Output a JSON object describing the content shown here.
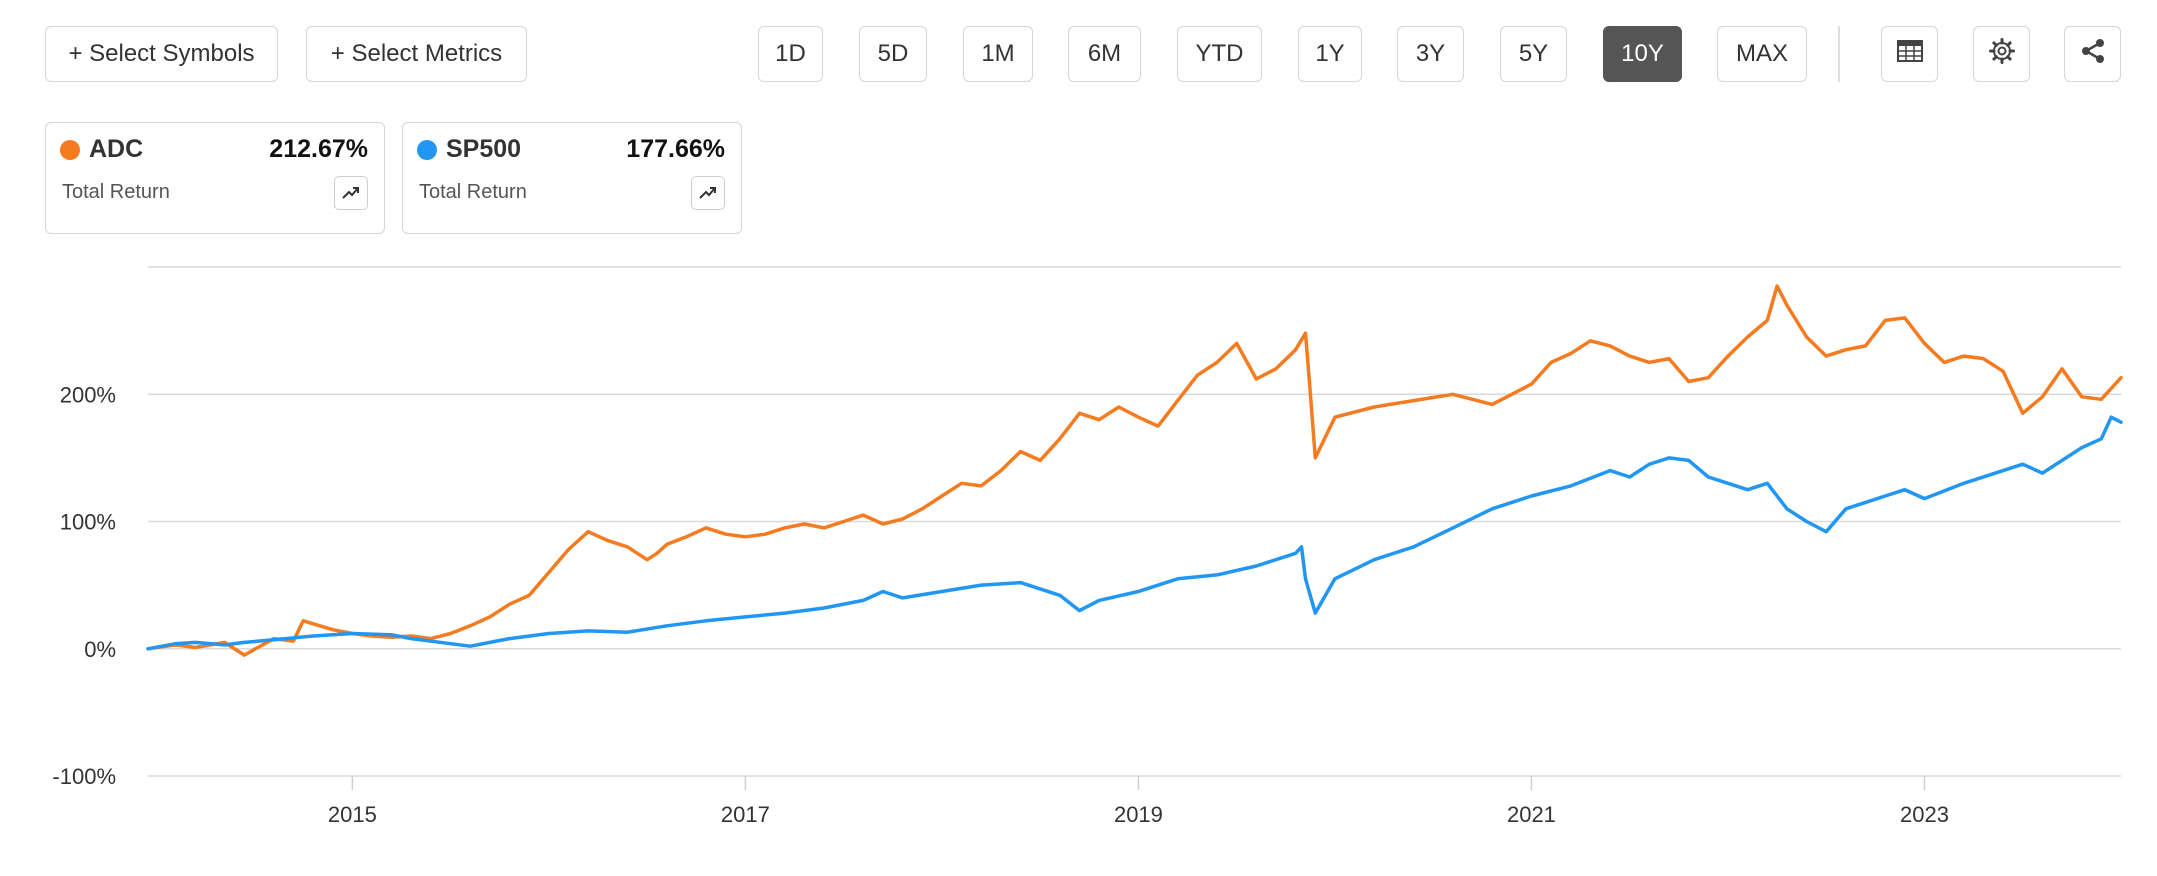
{
  "toolbar": {
    "select_symbols": "+ Select Symbols",
    "select_metrics": "+ Select Metrics",
    "ranges": [
      "1D",
      "5D",
      "1M",
      "6M",
      "YTD",
      "1Y",
      "3Y",
      "5Y",
      "10Y",
      "MAX"
    ],
    "active_range": "10Y",
    "icons": [
      "table-icon",
      "gear-icon",
      "share-icon"
    ]
  },
  "legend": [
    {
      "symbol": "ADC",
      "return": "212.67%",
      "metric": "Total Return",
      "color": "#F47B20"
    },
    {
      "symbol": "SP500",
      "return": "177.66%",
      "metric": "Total Return",
      "color": "#2196F3"
    }
  ],
  "chart_data": {
    "type": "line",
    "x_range": [
      2013.96,
      2024.0
    ],
    "ylim": [
      -100,
      300
    ],
    "y_ticks": [
      {
        "value": 200,
        "label": "200%"
      },
      {
        "value": 100,
        "label": "100%"
      },
      {
        "value": 0,
        "label": "0%"
      },
      {
        "value": -100,
        "label": "-100%"
      }
    ],
    "x_ticks": [
      {
        "value": 2015,
        "label": "2015"
      },
      {
        "value": 2017,
        "label": "2017"
      },
      {
        "value": 2019,
        "label": "2019"
      },
      {
        "value": 2021,
        "label": "2021"
      },
      {
        "value": 2023,
        "label": "2023"
      }
    ],
    "grid": true,
    "series": [
      {
        "name": "ADC",
        "color": "#F47B20",
        "x": [
          2013.96,
          2014.1,
          2014.2,
          2014.35,
          2014.45,
          2014.6,
          2014.7,
          2014.75,
          2014.9,
          2015.0,
          2015.1,
          2015.2,
          2015.3,
          2015.4,
          2015.5,
          2015.6,
          2015.7,
          2015.8,
          2015.9,
          2016.0,
          2016.1,
          2016.2,
          2016.3,
          2016.4,
          2016.5,
          2016.55,
          2016.6,
          2016.7,
          2016.8,
          2016.9,
          2017.0,
          2017.1,
          2017.2,
          2017.3,
          2017.4,
          2017.5,
          2017.6,
          2017.7,
          2017.8,
          2017.9,
          2018.0,
          2018.1,
          2018.2,
          2018.3,
          2018.4,
          2018.5,
          2018.6,
          2018.7,
          2018.8,
          2018.9,
          2019.0,
          2019.1,
          2019.2,
          2019.3,
          2019.4,
          2019.5,
          2019.6,
          2019.7,
          2019.8,
          2019.85,
          2019.87,
          2019.9,
          2020.0,
          2020.2,
          2020.4,
          2020.6,
          2020.8,
          2021.0,
          2021.1,
          2021.2,
          2021.3,
          2021.4,
          2021.5,
          2021.6,
          2021.7,
          2021.8,
          2021.9,
          2022.0,
          2022.1,
          2022.2,
          2022.25,
          2022.3,
          2022.4,
          2022.5,
          2022.6,
          2022.7,
          2022.8,
          2022.9,
          2023.0,
          2023.1,
          2023.2,
          2023.3,
          2023.4,
          2023.5,
          2023.6,
          2023.7,
          2023.8,
          2023.9,
          2024.0
        ],
        "y": [
          0,
          3,
          1,
          5,
          -5,
          8,
          6,
          22,
          15,
          12,
          10,
          9,
          10,
          8,
          12,
          18,
          25,
          35,
          42,
          60,
          78,
          92,
          85,
          80,
          70,
          75,
          82,
          88,
          95,
          90,
          88,
          90,
          95,
          98,
          95,
          100,
          105,
          98,
          102,
          110,
          120,
          130,
          128,
          140,
          155,
          148,
          165,
          185,
          180,
          190,
          182,
          175,
          195,
          215,
          225,
          240,
          212,
          220,
          235,
          248,
          210,
          150,
          182,
          190,
          195,
          200,
          192,
          208,
          225,
          232,
          242,
          238,
          230,
          225,
          228,
          210,
          213,
          230,
          245,
          258,
          285,
          270,
          245,
          230,
          235,
          238,
          258,
          260,
          240,
          225,
          230,
          228,
          218,
          185,
          198,
          220,
          198,
          196,
          213
        ]
      },
      {
        "name": "SP500",
        "color": "#2196F3",
        "x": [
          2013.96,
          2014.1,
          2014.2,
          2014.35,
          2014.45,
          2014.6,
          2014.8,
          2015.0,
          2015.2,
          2015.3,
          2015.5,
          2015.6,
          2015.7,
          2015.8,
          2016.0,
          2016.2,
          2016.4,
          2016.6,
          2016.8,
          2017.0,
          2017.2,
          2017.4,
          2017.6,
          2017.7,
          2017.8,
          2018.0,
          2018.2,
          2018.4,
          2018.6,
          2018.7,
          2018.8,
          2019.0,
          2019.2,
          2019.4,
          2019.6,
          2019.8,
          2019.83,
          2019.85,
          2019.9,
          2020.0,
          2020.2,
          2020.4,
          2020.6,
          2020.8,
          2021.0,
          2021.2,
          2021.4,
          2021.5,
          2021.6,
          2021.7,
          2021.8,
          2021.9,
          2022.0,
          2022.1,
          2022.2,
          2022.3,
          2022.4,
          2022.5,
          2022.6,
          2022.7,
          2022.8,
          2022.9,
          2023.0,
          2023.2,
          2023.4,
          2023.5,
          2023.6,
          2023.8,
          2023.9,
          2023.95,
          2024.0
        ],
        "y": [
          0,
          4,
          5,
          3,
          5,
          7,
          10,
          12,
          11,
          8,
          4,
          2,
          5,
          8,
          12,
          14,
          13,
          18,
          22,
          25,
          28,
          32,
          38,
          45,
          40,
          45,
          50,
          52,
          42,
          30,
          38,
          45,
          55,
          58,
          65,
          75,
          80,
          55,
          28,
          55,
          70,
          80,
          95,
          110,
          120,
          128,
          140,
          135,
          145,
          150,
          148,
          135,
          130,
          125,
          130,
          110,
          100,
          92,
          110,
          115,
          120,
          125,
          118,
          130,
          140,
          145,
          138,
          158,
          165,
          182,
          178
        ]
      }
    ]
  }
}
